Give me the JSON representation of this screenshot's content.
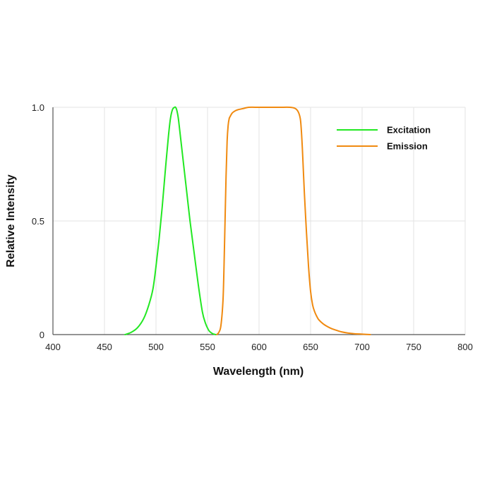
{
  "chart_data": {
    "type": "line",
    "title": "",
    "xlabel": "Wavelength (nm)",
    "ylabel": "Relative Intensity",
    "xlim": [
      400,
      800
    ],
    "ylim": [
      0,
      1.0
    ],
    "x_ticks": [
      400,
      450,
      500,
      550,
      600,
      650,
      700,
      750,
      800
    ],
    "x_tick_labels": [
      "400",
      "450",
      "500",
      "550",
      "600",
      "650",
      "700",
      "750",
      "800"
    ],
    "y_ticks": [
      0,
      0.5,
      1.0
    ],
    "y_tick_labels": [
      "0",
      "0.5",
      "1.0"
    ],
    "grid": true,
    "legend_position": "top-right",
    "series": [
      {
        "name": "Excitation",
        "color": "#22e822",
        "x": [
          470,
          476,
          482,
          488,
          493,
          497,
          500,
          503,
          506,
          509,
          512,
          514,
          516,
          518,
          519,
          520,
          521,
          522,
          524,
          527,
          530,
          533,
          537,
          541,
          545,
          548,
          551,
          553,
          555,
          557,
          558
        ],
        "y": [
          0.0,
          0.01,
          0.03,
          0.07,
          0.13,
          0.2,
          0.3,
          0.42,
          0.56,
          0.72,
          0.87,
          0.95,
          0.99,
          1.0,
          1.0,
          0.99,
          0.97,
          0.94,
          0.86,
          0.74,
          0.62,
          0.5,
          0.36,
          0.22,
          0.1,
          0.05,
          0.02,
          0.01,
          0.004,
          0.001,
          0.0
        ]
      },
      {
        "name": "Emission",
        "color": "#f08a10",
        "x": [
          559,
          561,
          563,
          565,
          566,
          567,
          568,
          569,
          570,
          571,
          572,
          574,
          577,
          580,
          585,
          590,
          600,
          610,
          620,
          630,
          635,
          638,
          640,
          641,
          642,
          643,
          644,
          646,
          648,
          650,
          652,
          654,
          656,
          658,
          662,
          666,
          670,
          675,
          680,
          686,
          692,
          700,
          708
        ],
        "y": [
          0.0,
          0.01,
          0.04,
          0.15,
          0.3,
          0.5,
          0.7,
          0.85,
          0.92,
          0.95,
          0.96,
          0.975,
          0.985,
          0.99,
          0.995,
          1.0,
          1.0,
          1.0,
          1.0,
          1.0,
          0.995,
          0.98,
          0.95,
          0.9,
          0.82,
          0.72,
          0.62,
          0.45,
          0.3,
          0.19,
          0.13,
          0.1,
          0.08,
          0.065,
          0.048,
          0.036,
          0.027,
          0.019,
          0.012,
          0.007,
          0.004,
          0.002,
          0.0
        ]
      }
    ]
  }
}
